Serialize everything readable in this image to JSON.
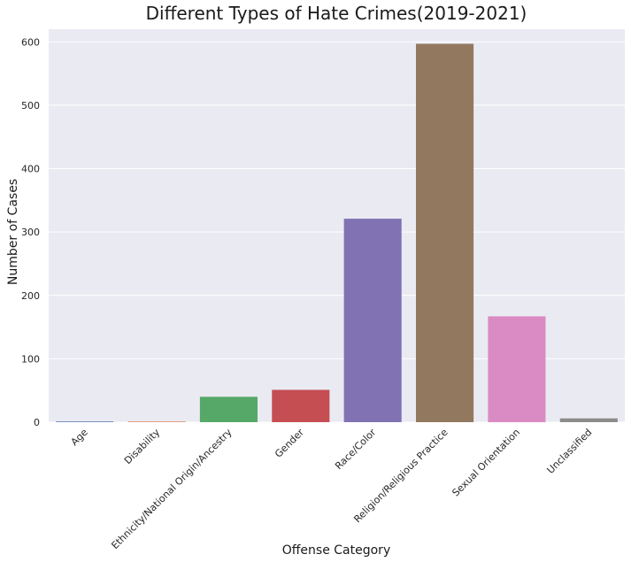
{
  "chart_data": {
    "type": "bar",
    "title": "Different Types of Hate Crimes(2019-2021)",
    "xlabel": "Offense Category",
    "ylabel": "Number of Cases",
    "categories": [
      "Age",
      "Disability",
      "Ethnicity/National Origin/Ancestry",
      "Gender",
      "Race/Color",
      "Religion/Religious Practice",
      "Sexual Orientation",
      "Unclassified"
    ],
    "values": [
      1,
      1,
      40,
      51,
      321,
      597,
      167,
      6
    ],
    "colors": [
      "#4c72b0",
      "#dd8452",
      "#55a868",
      "#c44e52",
      "#8172b3",
      "#937860",
      "#da8bc3",
      "#8c8c8c"
    ],
    "ylim": [
      0,
      620
    ],
    "yticks": [
      0,
      100,
      200,
      300,
      400,
      500,
      600
    ],
    "grid": true,
    "background": "#eaeaf2",
    "gridColor": "#ffffff"
  }
}
